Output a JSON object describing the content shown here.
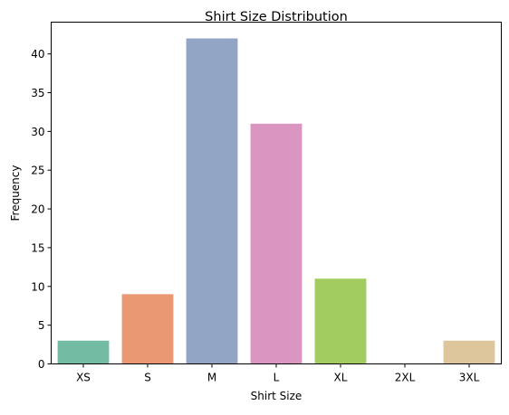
{
  "chart_data": {
    "type": "bar",
    "title": "Shirt Size Distribution",
    "xlabel": "Shirt Size",
    "ylabel": "Frequency",
    "categories": [
      "XS",
      "S",
      "M",
      "L",
      "XL",
      "2XL",
      "3XL"
    ],
    "values": [
      3,
      9,
      42,
      31,
      11,
      0,
      3
    ],
    "colors": [
      "#73bca3",
      "#ea9774",
      "#93a5c5",
      "#da96c0",
      "#a3cc60",
      "#f3d44e",
      "#ddc59c"
    ],
    "ylim": [
      0,
      44.1
    ],
    "yticks": [
      0,
      5,
      10,
      15,
      20,
      25,
      30,
      35,
      40
    ],
    "grid": false,
    "legend": "none"
  }
}
